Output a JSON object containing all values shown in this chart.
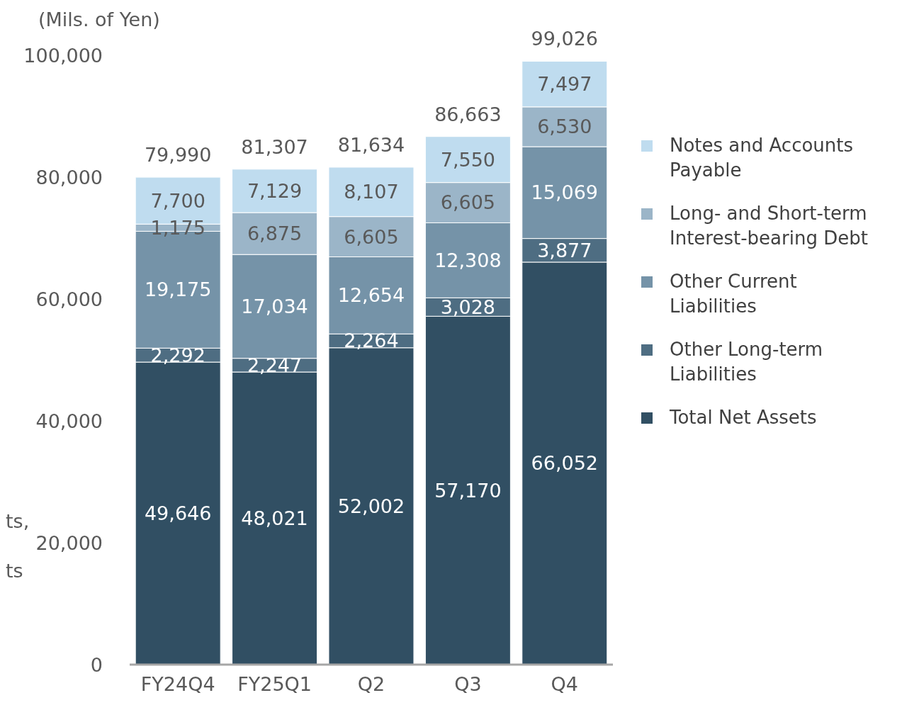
{
  "chart_data": {
    "type": "bar",
    "stacked": true,
    "ylabel": "(Mils. of Yen)",
    "categories": [
      "FY24Q4",
      "FY25Q1",
      "Q2",
      "Q3",
      "Q4"
    ],
    "series": [
      {
        "name": "Total Net Assets",
        "color": "#314f63",
        "values": [
          49646,
          48021,
          52002,
          57170,
          66052
        ],
        "value_labels": [
          "49,646",
          "48,021",
          "52,002",
          "57,170",
          "66,052"
        ]
      },
      {
        "name": "Other Long-term Liabilities",
        "color": "#4e6d82",
        "values": [
          2292,
          2247,
          2264,
          3028,
          3877
        ],
        "value_labels": [
          "2,292",
          "2,247",
          "2,264",
          "3,028",
          "3,877"
        ]
      },
      {
        "name": "Other Current Liabilities",
        "color": "#7593a8",
        "values": [
          19175,
          17034,
          12654,
          12308,
          15069
        ],
        "value_labels": [
          "19,175",
          "17,034",
          "12,654",
          "12,308",
          "15,069"
        ]
      },
      {
        "name": "Long- and Short-term Interest-bearing Debt",
        "color": "#9bb5c8",
        "values": [
          1175,
          6875,
          6605,
          6605,
          6530
        ],
        "value_labels": [
          "1,175",
          "6,875",
          "6,605",
          "6,605",
          "6,530"
        ]
      },
      {
        "name": "Notes and Accounts Payable",
        "color": "#bfdcef",
        "values": [
          7700,
          7129,
          8107,
          7550,
          7497
        ],
        "value_labels": [
          "7,700",
          "7,129",
          "8,107",
          "7,550",
          "7,497"
        ]
      }
    ],
    "totals": [
      "79,990",
      "81,307",
      "81,634",
      "86,663",
      "99,026"
    ],
    "ylim": [
      0,
      100000
    ],
    "yticks": [
      {
        "value": 0,
        "label": "0"
      },
      {
        "value": 20000,
        "label": "20,000"
      },
      {
        "value": 40000,
        "label": "40,000"
      },
      {
        "value": 60000,
        "label": "60,000"
      },
      {
        "value": 80000,
        "label": "80,000"
      },
      {
        "value": 100000,
        "label": "100,000"
      }
    ],
    "grid": false,
    "legend": "right",
    "annotations": [
      "ts,",
      "ts"
    ]
  }
}
